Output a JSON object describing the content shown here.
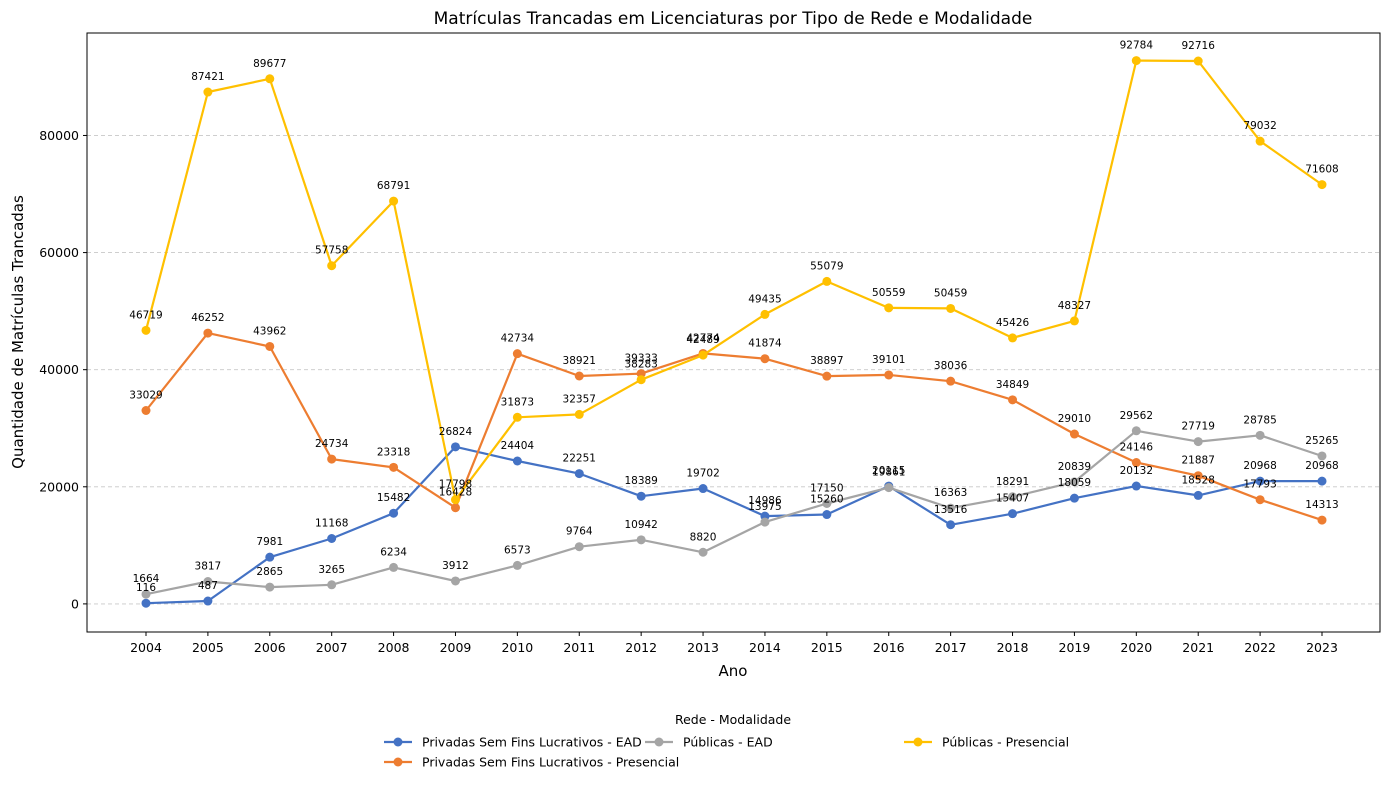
{
  "chart_data": {
    "type": "line",
    "title": "Matrículas Trancadas em Licenciaturas por Tipo de Rede e Modalidade",
    "xlabel": "Ano",
    "ylabel": "Quantidade de Matrículas Trancadas",
    "x": [
      "2004",
      "2005",
      "2006",
      "2007",
      "2008",
      "2009",
      "2010",
      "2011",
      "2012",
      "2013",
      "2014",
      "2015",
      "2016",
      "2017",
      "2018",
      "2019",
      "2020",
      "2021",
      "2022",
      "2023"
    ],
    "y_ticks": [
      "0",
      "20000",
      "40000",
      "60000",
      "80000"
    ],
    "ylim": [
      -4800,
      97500
    ],
    "grid": "horizontal dashed",
    "legend_title": "Rede - Modalidade",
    "legend_position": "bottom-center",
    "series": [
      {
        "name": "Privadas Sem Fins Lucrativos - EAD",
        "color": "#4472c4",
        "values": [
          116,
          487,
          7981,
          11168,
          15482,
          26824,
          24404,
          22251,
          18389,
          19702,
          14986,
          15260,
          20115,
          13516,
          15407,
          18059,
          20132,
          18528,
          20968,
          20968
        ]
      },
      {
        "name": "Privadas Sem Fins Lucrativos - Presencial",
        "color": "#ed7d31",
        "values": [
          33029,
          46252,
          43962,
          24734,
          23318,
          16428,
          42734,
          38921,
          39333,
          42774,
          41874,
          38897,
          39101,
          38036,
          34849,
          29010,
          24146,
          21887,
          17793,
          14313
        ]
      },
      {
        "name": "Públicas - EAD",
        "color": "#a5a5a5",
        "values": [
          1664,
          3817,
          2865,
          3265,
          6234,
          3912,
          6573,
          9764,
          10942,
          8820,
          13975,
          17150,
          19861,
          16363,
          18291,
          20839,
          29562,
          27719,
          28785,
          25265
        ]
      },
      {
        "name": "Públicas - Presencial",
        "color": "#ffc000",
        "values": [
          46719,
          87421,
          89677,
          57758,
          68791,
          17798,
          31873,
          32357,
          38283,
          42489,
          49435,
          55079,
          50559,
          50459,
          45426,
          48327,
          92784,
          92716,
          79032,
          71608
        ]
      }
    ]
  }
}
